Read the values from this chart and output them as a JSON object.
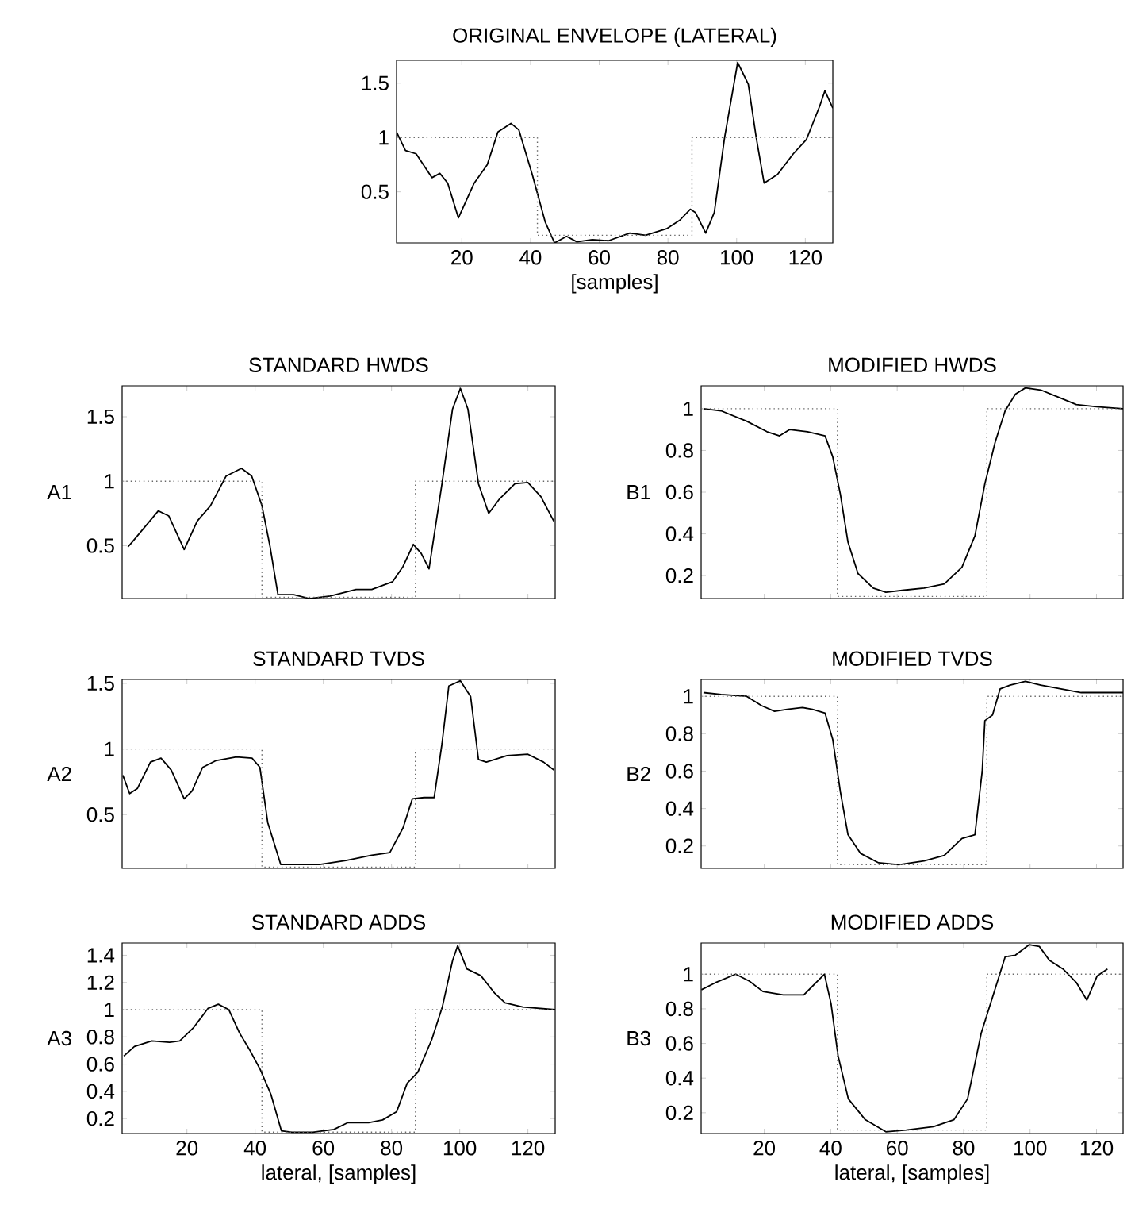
{
  "chart_data": [
    {
      "type": "line",
      "title": "ORIGINAL ENVELOPE (LATERAL)",
      "xlabel": "[samples]",
      "xlim": [
        1,
        128
      ],
      "ylim": [
        0.03,
        1.71
      ],
      "xticks": [
        20,
        40,
        60,
        80,
        100,
        120
      ],
      "yticks": [
        0.5,
        1,
        1.5
      ],
      "series": [
        {
          "color": "#000000",
          "line_style": "solid",
          "x": [
            1,
            3.6,
            6.7,
            11.3,
            13.6,
            15.9,
            19,
            23.6,
            27.4,
            30.5,
            34.3,
            36.6,
            40.5,
            44.3,
            47,
            50.5,
            53.5,
            58,
            62.7,
            68.9,
            73.5,
            79.6,
            83.5,
            86.5,
            88,
            91,
            93.5,
            96.5,
            100.3,
            103.4,
            105.7,
            108,
            111.9,
            116.5,
            120.3,
            124.2,
            125.7,
            128
          ],
          "values": [
            1.05,
            0.88,
            0.85,
            0.63,
            0.67,
            0.58,
            0.26,
            0.58,
            0.75,
            1.05,
            1.13,
            1.07,
            0.66,
            0.22,
            0.03,
            0.09,
            0.04,
            0.06,
            0.05,
            0.12,
            0.1,
            0.16,
            0.24,
            0.34,
            0.31,
            0.12,
            0.31,
            1.0,
            1.69,
            1.49,
            1.0,
            0.58,
            0.66,
            0.85,
            0.98,
            1.29,
            1.43,
            1.27
          ]
        },
        {
          "color": "#666666",
          "line_style": "dotted",
          "x": [
            1,
            42,
            42,
            87,
            87,
            128
          ],
          "values": [
            1,
            1,
            0.1,
            0.1,
            1,
            1
          ]
        }
      ]
    },
    {
      "type": "line",
      "title": "STANDARD HWDS",
      "ylabel": "A1",
      "tick_labels": "y",
      "xlim": [
        1,
        128
      ],
      "ylim": [
        0.09,
        1.74
      ],
      "xticks": [
        20,
        40,
        60,
        80,
        100,
        120
      ],
      "yticks": [
        0.5,
        1,
        1.5
      ],
      "series": [
        {
          "color": "#000000",
          "line_style": "solid",
          "x": [
            2.7,
            4,
            11.6,
            14.7,
            19.2,
            23,
            26.9,
            31.5,
            36,
            39,
            42,
            44.4,
            46.7,
            51.3,
            55.9,
            62,
            69.6,
            74.2,
            80.3,
            83.4,
            86.4,
            88.7,
            91,
            94.8,
            97.9,
            100.2,
            102.4,
            105.5,
            108.5,
            111.6,
            116.2,
            120,
            123.8,
            127.6
          ],
          "values": [
            0.49,
            0.53,
            0.77,
            0.73,
            0.47,
            0.69,
            0.81,
            1.04,
            1.1,
            1.04,
            0.81,
            0.49,
            0.12,
            0.12,
            0.09,
            0.11,
            0.16,
            0.16,
            0.22,
            0.34,
            0.51,
            0.44,
            0.32,
            0.98,
            1.56,
            1.72,
            1.56,
            0.98,
            0.75,
            0.86,
            0.98,
            0.99,
            0.88,
            0.69
          ]
        },
        {
          "color": "#666666",
          "line_style": "dotted",
          "x": [
            1,
            42,
            42,
            87,
            87,
            128
          ],
          "values": [
            1,
            1,
            0.1,
            0.1,
            1,
            1
          ]
        }
      ]
    },
    {
      "type": "line",
      "title": "MODIFIED HWDS",
      "ylabel": "B1",
      "tick_labels": "y",
      "xlim": [
        1,
        128
      ],
      "ylim": [
        0.09,
        1.11
      ],
      "xticks": [
        20,
        40,
        60,
        80,
        100,
        120
      ],
      "yticks": [
        0.2,
        0.4,
        0.6,
        0.8,
        1
      ],
      "series": [
        {
          "color": "#000000",
          "line_style": "solid",
          "x": [
            1.7,
            7,
            14.7,
            20.8,
            24.6,
            27.6,
            33,
            38.3,
            40.6,
            42.9,
            45.2,
            48.2,
            52.8,
            56.6,
            62,
            68.1,
            74.2,
            79.5,
            83.4,
            86.4,
            89.5,
            92.5,
            95.6,
            98.6,
            103.2,
            107.8,
            113.9,
            120,
            128
          ],
          "values": [
            1.0,
            0.99,
            0.94,
            0.89,
            0.87,
            0.9,
            0.89,
            0.87,
            0.77,
            0.59,
            0.36,
            0.21,
            0.14,
            0.12,
            0.13,
            0.14,
            0.16,
            0.24,
            0.39,
            0.64,
            0.84,
            0.99,
            1.07,
            1.1,
            1.09,
            1.06,
            1.02,
            1.01,
            1.0
          ]
        },
        {
          "color": "#666666",
          "line_style": "dotted",
          "x": [
            1,
            42,
            42,
            87,
            87,
            128
          ],
          "values": [
            1,
            1,
            0.1,
            0.1,
            1,
            1
          ]
        }
      ]
    },
    {
      "type": "line",
      "title": "STANDARD TVDS",
      "ylabel": "A2",
      "tick_labels": "y",
      "xlim": [
        1,
        128
      ],
      "ylim": [
        0.09,
        1.53
      ],
      "xticks": [
        20,
        40,
        60,
        80,
        100,
        120
      ],
      "yticks": [
        0.5,
        1,
        1.5
      ],
      "series": [
        {
          "color": "#000000",
          "line_style": "solid",
          "x": [
            1.2,
            3.2,
            5.5,
            9.3,
            12.4,
            15.4,
            19.2,
            21.5,
            24.6,
            28.4,
            34.5,
            39.1,
            41.4,
            43.7,
            47.5,
            52.8,
            58.9,
            66.6,
            74.2,
            79.5,
            83.4,
            86.1,
            89.5,
            92.5,
            94.8,
            96.8,
            100.2,
            103.2,
            105.5,
            107.8,
            113.9,
            120,
            124.6,
            127.6
          ],
          "values": [
            0.8,
            0.66,
            0.7,
            0.9,
            0.93,
            0.84,
            0.62,
            0.68,
            0.86,
            0.91,
            0.94,
            0.93,
            0.86,
            0.44,
            0.12,
            0.12,
            0.12,
            0.15,
            0.19,
            0.21,
            0.4,
            0.62,
            0.63,
            0.63,
            1.04,
            1.48,
            1.52,
            1.4,
            0.92,
            0.9,
            0.95,
            0.96,
            0.9,
            0.84
          ]
        },
        {
          "color": "#666666",
          "line_style": "dotted",
          "x": [
            1,
            42,
            42,
            87,
            87,
            128
          ],
          "values": [
            1,
            1,
            0.1,
            0.1,
            1,
            1
          ]
        }
      ]
    },
    {
      "type": "line",
      "title": "MODIFIED TVDS",
      "ylabel": "B2",
      "tick_labels": "y",
      "xlim": [
        1,
        128
      ],
      "ylim": [
        0.08,
        1.09
      ],
      "xticks": [
        20,
        40,
        60,
        80,
        100,
        120
      ],
      "yticks": [
        0.2,
        0.4,
        0.6,
        0.8,
        1
      ],
      "series": [
        {
          "color": "#000000",
          "line_style": "solid",
          "x": [
            1.7,
            7,
            14.7,
            19.2,
            23.1,
            26.9,
            31.5,
            34.5,
            38.3,
            40.6,
            42.9,
            45.2,
            49,
            54.4,
            60.5,
            68.1,
            74.2,
            79.5,
            83.4,
            85.6,
            86.4,
            88.7,
            91,
            94,
            98.6,
            103.2,
            109.3,
            115.4,
            128
          ],
          "values": [
            1.02,
            1.01,
            1.0,
            0.95,
            0.92,
            0.93,
            0.94,
            0.93,
            0.91,
            0.77,
            0.49,
            0.26,
            0.16,
            0.11,
            0.1,
            0.12,
            0.15,
            0.24,
            0.26,
            0.6,
            0.87,
            0.9,
            1.04,
            1.06,
            1.08,
            1.06,
            1.04,
            1.02,
            1.02
          ]
        },
        {
          "color": "#666666",
          "line_style": "dotted",
          "x": [
            1,
            42,
            42,
            87,
            87,
            128
          ],
          "values": [
            1,
            1,
            0.1,
            0.1,
            1,
            1
          ]
        }
      ]
    },
    {
      "type": "line",
      "title": "STANDARD ADDS",
      "xlabel": "lateral, [samples]",
      "ylabel": "A3",
      "xlim": [
        1,
        128
      ],
      "ylim": [
        0.09,
        1.49
      ],
      "xticks": [
        20,
        40,
        60,
        80,
        100,
        120
      ],
      "yticks": [
        0.2,
        0.4,
        0.6,
        0.8,
        1,
        1.2,
        1.4
      ],
      "series": [
        {
          "color": "#000000",
          "line_style": "solid",
          "x": [
            1.5,
            4.6,
            9.7,
            14.9,
            17.9,
            22,
            26.2,
            29.2,
            32.3,
            35.4,
            38.5,
            41.5,
            44.6,
            47.7,
            50.8,
            56.9,
            63.1,
            67.2,
            73.3,
            77.4,
            81.5,
            84.6,
            87.7,
            91.8,
            94.9,
            97.9,
            99.4,
            102.1,
            106.2,
            110.3,
            113.3,
            118.5,
            128
          ],
          "values": [
            0.66,
            0.73,
            0.77,
            0.76,
            0.77,
            0.87,
            1.01,
            1.04,
            1.0,
            0.83,
            0.7,
            0.56,
            0.38,
            0.11,
            0.1,
            0.1,
            0.12,
            0.17,
            0.17,
            0.19,
            0.25,
            0.46,
            0.54,
            0.78,
            1.02,
            1.36,
            1.47,
            1.3,
            1.25,
            1.12,
            1.05,
            1.02,
            1.0
          ]
        },
        {
          "color": "#666666",
          "line_style": "dotted",
          "x": [
            1,
            42,
            42,
            87,
            87,
            128
          ],
          "values": [
            1,
            1,
            0.1,
            0.1,
            1,
            1
          ]
        }
      ]
    },
    {
      "type": "line",
      "title": "MODIFIED ADDS",
      "xlabel": "lateral, [samples]",
      "ylabel": "B3",
      "xlim": [
        1,
        128
      ],
      "ylim": [
        0.08,
        1.18
      ],
      "xticks": [
        20,
        40,
        60,
        80,
        100,
        120
      ],
      "yticks": [
        0.2,
        0.4,
        0.6,
        0.8,
        1
      ],
      "series": [
        {
          "color": "#000000",
          "line_style": "solid",
          "x": [
            1.1,
            5.2,
            11.4,
            15.5,
            19.6,
            25.7,
            31.9,
            36,
            38.1,
            40.1,
            42.2,
            45.3,
            50.4,
            56.6,
            62.7,
            70.9,
            77.1,
            81.2,
            85.3,
            89.4,
            92.5,
            95.6,
            99.7,
            102.8,
            105.8,
            109.9,
            114,
            117.1,
            120.2,
            123.3
          ],
          "values": [
            0.91,
            0.95,
            1.0,
            0.96,
            0.9,
            0.88,
            0.88,
            0.96,
            1.0,
            0.83,
            0.53,
            0.28,
            0.16,
            0.09,
            0.1,
            0.12,
            0.16,
            0.28,
            0.66,
            0.91,
            1.1,
            1.11,
            1.17,
            1.16,
            1.08,
            1.03,
            0.95,
            0.85,
            0.99,
            1.03
          ]
        },
        {
          "color": "#666666",
          "line_style": "dotted",
          "x": [
            1,
            42,
            42,
            87,
            87,
            128
          ],
          "values": [
            1,
            1,
            0.1,
            0.1,
            1,
            1
          ]
        }
      ]
    }
  ]
}
